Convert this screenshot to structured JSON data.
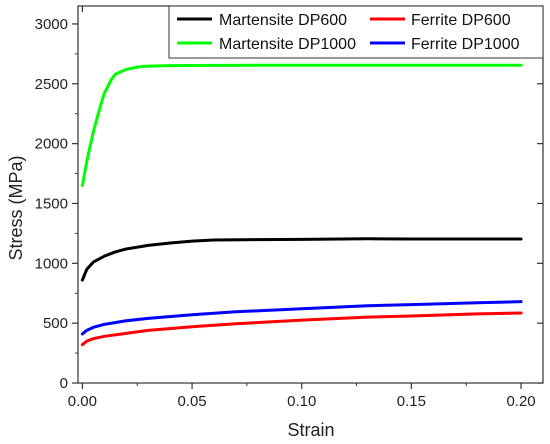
{
  "chart_data": {
    "type": "line",
    "xlabel": "Strain",
    "ylabel": "Stress (MPa)",
    "xlim": [
      -0.002,
      0.21
    ],
    "ylim": [
      0,
      3150
    ],
    "xticks": [
      "0.00",
      "0.05",
      "0.10",
      "0.15",
      "0.20"
    ],
    "xtick_values": [
      0,
      0.05,
      0.1,
      0.15,
      0.2
    ],
    "yticks": [
      "0",
      "500",
      "1000",
      "1500",
      "2000",
      "2500",
      "3000"
    ],
    "ytick_values": [
      0,
      500,
      1000,
      1500,
      2000,
      2500,
      3000
    ],
    "grid": false,
    "legend_position": "top-right",
    "series": [
      {
        "name": "Martensite DP600",
        "color": "#000000",
        "x": [
          0,
          0.002,
          0.005,
          0.01,
          0.015,
          0.02,
          0.03,
          0.04,
          0.05,
          0.06,
          0.08,
          0.1,
          0.13,
          0.15,
          0.2
        ],
        "y": [
          860,
          950,
          1010,
          1060,
          1095,
          1120,
          1150,
          1170,
          1185,
          1195,
          1198,
          1200,
          1205,
          1203,
          1203
        ]
      },
      {
        "name": "Ferrite DP600",
        "color": "#ff0000",
        "x": [
          0,
          0.002,
          0.005,
          0.01,
          0.02,
          0.03,
          0.05,
          0.07,
          0.1,
          0.13,
          0.15,
          0.18,
          0.2
        ],
        "y": [
          320,
          350,
          370,
          390,
          415,
          440,
          470,
          495,
          525,
          550,
          560,
          578,
          585
        ]
      },
      {
        "name": "Martensite DP1000",
        "color": "#00ff00",
        "x": [
          0,
          0.002,
          0.005,
          0.008,
          0.01,
          0.013,
          0.015,
          0.02,
          0.025,
          0.03,
          0.04,
          0.06,
          0.1,
          0.15,
          0.2
        ],
        "y": [
          1650,
          1850,
          2100,
          2300,
          2420,
          2530,
          2580,
          2620,
          2640,
          2648,
          2652,
          2654,
          2655,
          2655,
          2655
        ]
      },
      {
        "name": "Ferrite DP1000",
        "color": "#0000ff",
        "x": [
          0,
          0.002,
          0.005,
          0.01,
          0.02,
          0.03,
          0.05,
          0.07,
          0.1,
          0.13,
          0.15,
          0.18,
          0.2
        ],
        "y": [
          410,
          440,
          465,
          490,
          520,
          540,
          570,
          595,
          620,
          645,
          655,
          670,
          680
        ]
      }
    ]
  }
}
